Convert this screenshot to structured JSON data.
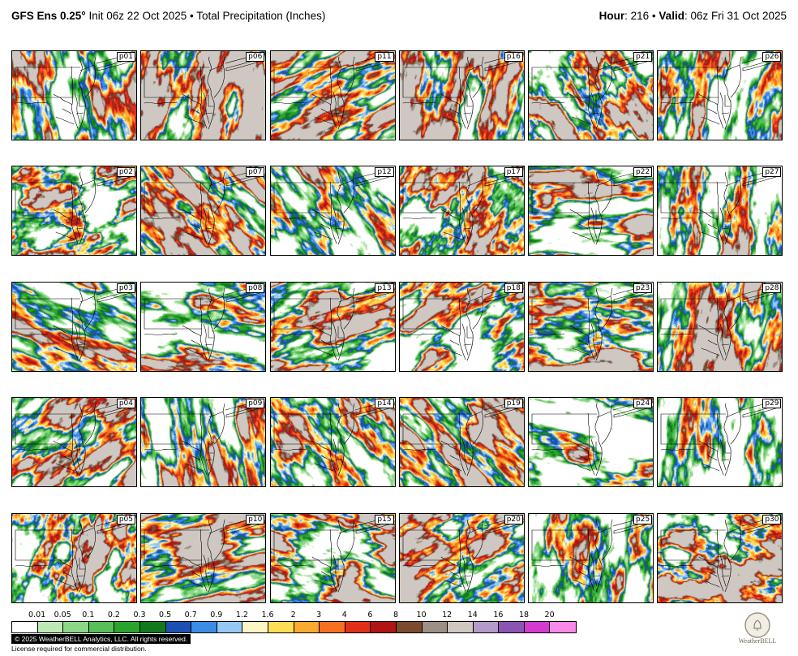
{
  "header": {
    "title_bold": "GFS Ens 0.25°",
    "title_rest": " Init 06z 22 Oct 2025 • Total Precipitation (Inches)",
    "hour_label": "Hour",
    "hour_rest": ": 216 • ",
    "valid_label": "Valid",
    "valid_rest": ": 06z Fri 31 Oct 2025"
  },
  "panels": [
    {
      "id": "p01"
    },
    {
      "id": "p02"
    },
    {
      "id": "p03"
    },
    {
      "id": "p04"
    },
    {
      "id": "p05"
    },
    {
      "id": "p06"
    },
    {
      "id": "p07"
    },
    {
      "id": "p08"
    },
    {
      "id": "p09"
    },
    {
      "id": "p10"
    },
    {
      "id": "p11"
    },
    {
      "id": "p12"
    },
    {
      "id": "p13"
    },
    {
      "id": "p14"
    },
    {
      "id": "p15"
    },
    {
      "id": "p16"
    },
    {
      "id": "p17"
    },
    {
      "id": "p18"
    },
    {
      "id": "p19"
    },
    {
      "id": "p20"
    },
    {
      "id": "p21"
    },
    {
      "id": "p22"
    },
    {
      "id": "p23"
    },
    {
      "id": "p24"
    },
    {
      "id": "p25"
    },
    {
      "id": "p26"
    },
    {
      "id": "p27"
    },
    {
      "id": "p28"
    },
    {
      "id": "p29"
    },
    {
      "id": "p30"
    }
  ],
  "colorbar": {
    "labels": [
      "0.01",
      "0.05",
      "0.1",
      "0.2",
      "0.3",
      "0.5",
      "0.7",
      "0.9",
      "1.2",
      "1.6",
      "2",
      "3",
      "4",
      "6",
      "8",
      "10",
      "12",
      "14",
      "16",
      "18",
      "20"
    ],
    "colors": [
      "#ffffff",
      "#bdeab4",
      "#8cd687",
      "#57bf57",
      "#2aa42e",
      "#117a1c",
      "#1e50b4",
      "#3c8ce6",
      "#96c8f5",
      "#fdf5c3",
      "#fddd55",
      "#fcaa2f",
      "#f57120",
      "#e03118",
      "#b01414",
      "#7c4a2d",
      "#9e8f85",
      "#cfc8c2",
      "#b49ac8",
      "#8b55b4",
      "#d53ad0",
      "#f789e8"
    ]
  },
  "footer": {
    "copyright": "© 2025 WeatherBELL Analytics, LLC. All rights reserved.",
    "license": "License required for commercial distribution.",
    "logo_text": "WeatherBELL"
  }
}
